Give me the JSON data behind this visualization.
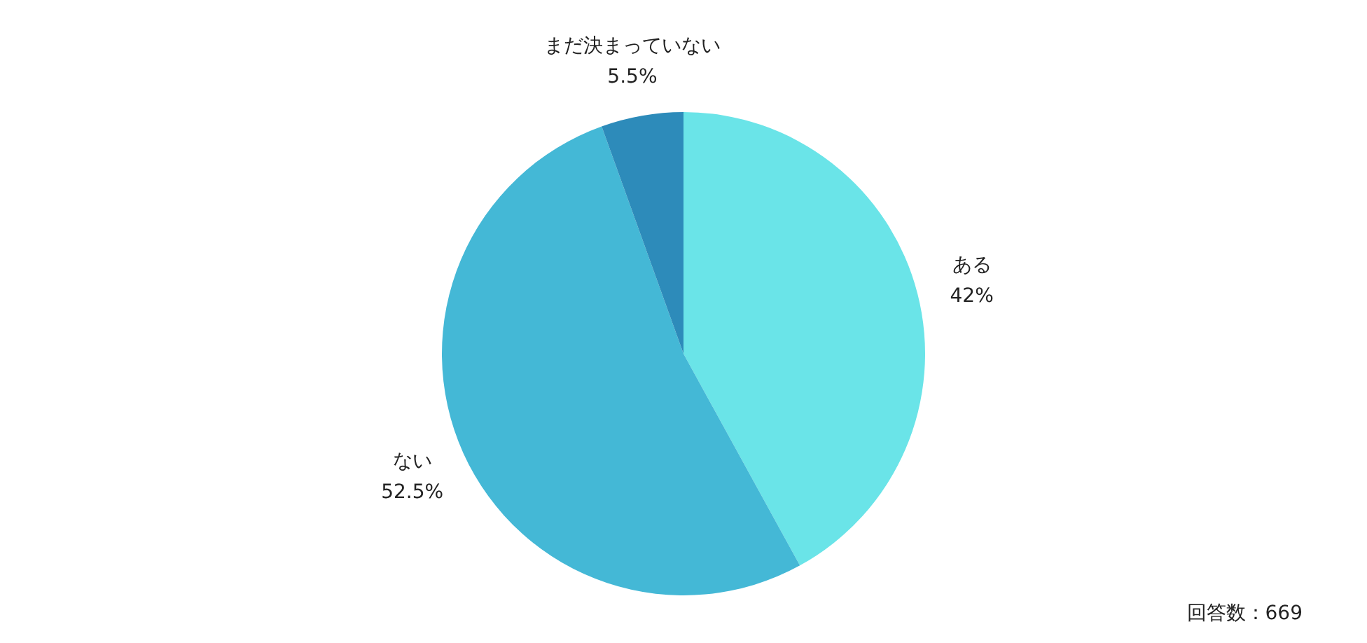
{
  "chart_data": {
    "type": "pie",
    "categories": [
      "ある",
      "ない",
      "まだ決まっていない"
    ],
    "values": [
      42,
      52.5,
      5.5
    ],
    "colors": [
      "#6ae4e8",
      "#44b8d6",
      "#2d8bba"
    ],
    "value_labels": [
      "42%",
      "52.5%",
      "5.5%"
    ],
    "legend": false,
    "annotations": [
      "回答数：669"
    ]
  }
}
